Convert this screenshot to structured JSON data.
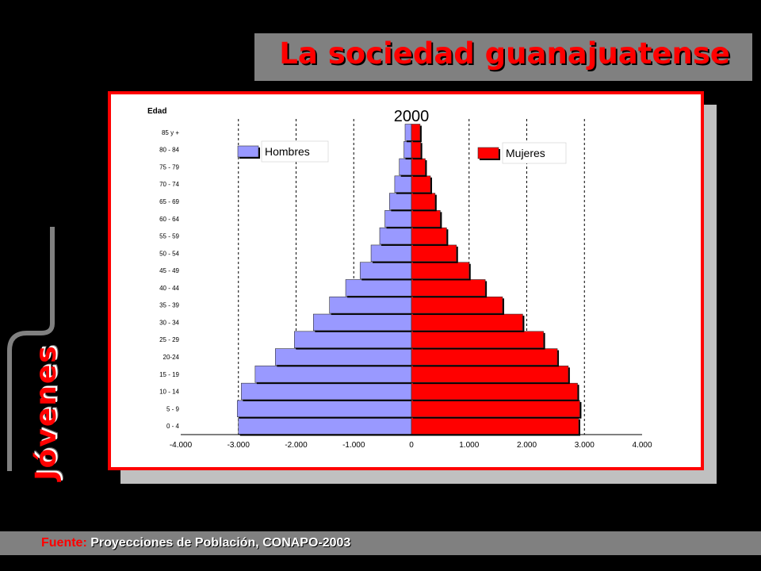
{
  "slide": {
    "title": "La sociedad guanajuatense",
    "side_label": "Jóvenes",
    "footer_label": "Fuente:",
    "footer_source": "Proyecciones de Población, CONAPO-2003"
  },
  "colors": {
    "background": "#000000",
    "title_bar": "#808080",
    "accent_red": "#ff0000",
    "men": "#9999ff",
    "women": "#ff0000"
  },
  "chart_data": {
    "type": "bar",
    "orientation": "horizontal",
    "subtype": "population-pyramid",
    "title": "2000",
    "ylabel": "Edad",
    "xlabel": "",
    "categories": [
      "0 - 4",
      "5 - 9",
      "10 - 14",
      "15 - 19",
      "20-24",
      "25 - 29",
      "30 - 34",
      "35 - 39",
      "40 - 44",
      "45 - 49",
      "50 - 54",
      "55 - 59",
      "60 - 64",
      "65 - 69",
      "70 - 74",
      "75 - 79",
      "80 - 84",
      "85 y +"
    ],
    "series": [
      {
        "name": "Hombres",
        "color": "#9999ff",
        "values": [
          -3000,
          -3020,
          -2950,
          -2710,
          -2360,
          -2030,
          -1700,
          -1420,
          -1140,
          -890,
          -700,
          -550,
          -460,
          -380,
          -290,
          -210,
          -130,
          -110
        ]
      },
      {
        "name": "Mujeres",
        "color": "#ff0000",
        "values": [
          2900,
          2920,
          2880,
          2720,
          2530,
          2290,
          1930,
          1580,
          1280,
          1000,
          780,
          610,
          500,
          410,
          330,
          240,
          160,
          150
        ]
      }
    ],
    "xlim": [
      -4000,
      4000
    ],
    "xticks": [
      -4000,
      -3000,
      -2000,
      -1000,
      0,
      1000,
      2000,
      3000,
      4000
    ],
    "xtick_labels": [
      "-4.000",
      "-3.000",
      "-2.000",
      "-1.000",
      "0",
      "1.000",
      "2.000",
      "3.000",
      "4.000"
    ],
    "grid": "dashed vertical",
    "legend": [
      {
        "label": "Hombres",
        "placement": "upper-left"
      },
      {
        "label": "Mujeres",
        "placement": "upper-right"
      }
    ]
  }
}
